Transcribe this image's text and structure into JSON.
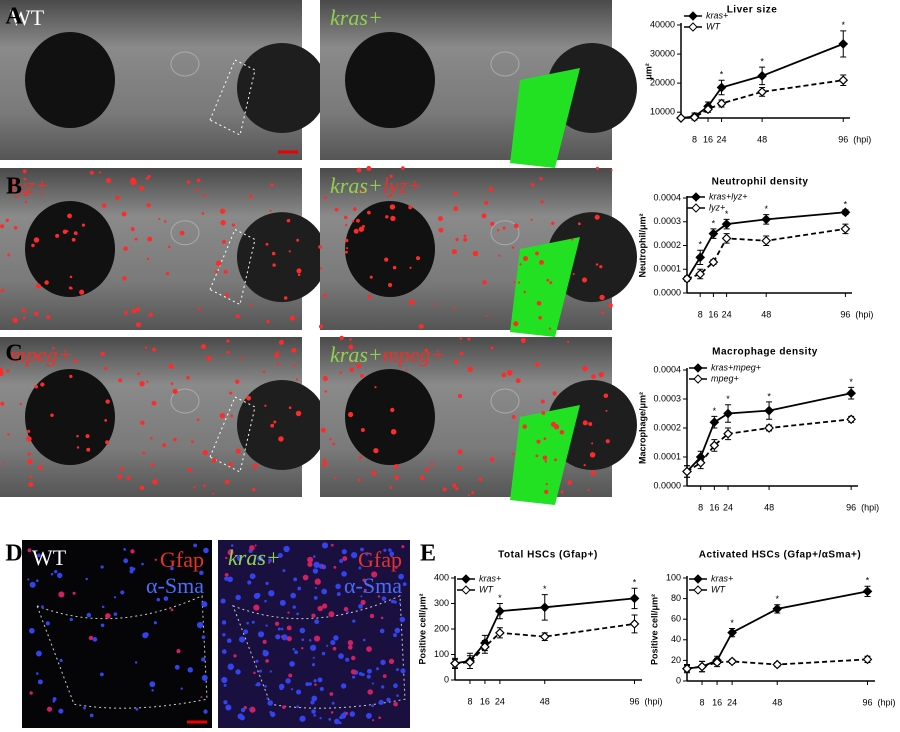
{
  "panels": [
    "A",
    "B",
    "C",
    "D",
    "E"
  ],
  "images": [
    {
      "labels": [
        {
          "text": "WT",
          "color": "#ffffff",
          "italic": false
        }
      ]
    },
    {
      "labels": [
        {
          "text": "kras+",
          "color": "#8fd14f",
          "italic": true
        }
      ]
    },
    {
      "labels": [
        {
          "text": "lyz+",
          "color": "#e8322a",
          "italic": true
        }
      ]
    },
    {
      "labels": [
        {
          "text": "kras+",
          "color": "#8fd14f",
          "italic": true
        },
        {
          "text": "lyz+",
          "color": "#e8322a",
          "italic": true
        }
      ]
    },
    {
      "labels": [
        {
          "text": "mpeg+",
          "color": "#e8322a",
          "italic": true
        }
      ]
    },
    {
      "labels": [
        {
          "text": "kras+",
          "color": "#8fd14f",
          "italic": true
        },
        {
          "text": "mpeg+",
          "color": "#e8322a",
          "italic": true
        }
      ]
    },
    {
      "labels": [
        {
          "text": "WT",
          "color": "#ffffff",
          "italic": false
        }
      ],
      "stains": [
        {
          "text": "Gfap",
          "color": "#e8322a"
        },
        {
          "text": "α-Sma",
          "color": "#4a6cff"
        }
      ]
    },
    {
      "labels": [
        {
          "text": "kras+",
          "color": "#8fd14f",
          "italic": true
        }
      ],
      "stains": [
        {
          "text": "Gfap",
          "color": "#e8322a"
        },
        {
          "text": "α-Sma",
          "color": "#4a6cff"
        }
      ]
    }
  ],
  "chart_data": [
    {
      "type": "line",
      "title": "Liver size",
      "ylabel": "μm²",
      "xlabel": "(hpi)",
      "x": [
        0,
        8,
        16,
        24,
        48,
        96
      ],
      "xlim": [
        0,
        100
      ],
      "xticks": [
        8,
        16,
        24,
        48,
        96
      ],
      "ylim": [
        8000,
        40000
      ],
      "yticks": [
        10000,
        20000,
        30000,
        40000
      ],
      "series": [
        {
          "name": "kras+",
          "color": "#000000",
          "marker": "filled",
          "dash": "solid",
          "values": [
            8000,
            8500,
            12000,
            18500,
            22500,
            33500
          ],
          "errors": [
            500,
            1200,
            1500,
            2500,
            3000,
            4500
          ]
        },
        {
          "name": "WT",
          "color": "#000000",
          "marker": "open",
          "dash": "dashed",
          "values": [
            8000,
            8200,
            11000,
            13000,
            17000,
            21000
          ],
          "errors": [
            500,
            800,
            1000,
            1200,
            1500,
            1800
          ]
        }
      ],
      "significance_marker": "*",
      "significant_x": [
        24,
        48,
        96
      ]
    },
    {
      "type": "line",
      "title": "Neutrophil density",
      "ylabel": "Neutrophil/μm²",
      "xlabel": "(hpi)",
      "x": [
        0,
        8,
        16,
        24,
        48,
        96
      ],
      "xlim": [
        0,
        100
      ],
      "xticks": [
        8,
        16,
        24,
        48,
        96
      ],
      "ylim": [
        0,
        0.0004
      ],
      "yticks": [
        {
          "value": 0,
          "label": "0.0000"
        },
        {
          "value": 0.0001,
          "label": "0.0001"
        },
        {
          "value": 0.0002,
          "label": "0.0002"
        },
        {
          "value": 0.0003,
          "label": "0.0003"
        },
        {
          "value": 0.0004,
          "label": "0.0004"
        }
      ],
      "series": [
        {
          "name": "kras+lyz+",
          "color": "#000000",
          "marker": "filled",
          "dash": "solid",
          "values": [
            6e-05,
            0.00015,
            0.00025,
            0.00029,
            0.00031,
            0.00034
          ],
          "errors": [
            1e-05,
            3e-05,
            2e-05,
            2e-05,
            2e-05,
            1e-05
          ]
        },
        {
          "name": "lyz+",
          "color": "#000000",
          "marker": "open",
          "dash": "dashed",
          "values": [
            6e-05,
            8e-05,
            0.00013,
            0.00023,
            0.00022,
            0.00027
          ],
          "errors": [
            1e-05,
            2e-05,
            1e-05,
            2e-05,
            2e-05,
            2e-05
          ]
        }
      ],
      "significance_marker": "*",
      "significant_x": [
        8,
        16,
        24,
        48,
        96
      ]
    },
    {
      "type": "line",
      "title": "Macrophage density",
      "ylabel": "Macrophage/μm²",
      "xlabel": "(hpi)",
      "x": [
        0,
        8,
        16,
        24,
        48,
        96
      ],
      "xlim": [
        0,
        100
      ],
      "xticks": [
        8,
        16,
        24,
        48,
        96
      ],
      "ylim": [
        0,
        0.0004
      ],
      "yticks": [
        {
          "value": 0,
          "label": "0.0000"
        },
        {
          "value": 0.0001,
          "label": "0.0001"
        },
        {
          "value": 0.0002,
          "label": "0.0002"
        },
        {
          "value": 0.0003,
          "label": "0.0003"
        },
        {
          "value": 0.0004,
          "label": "0.0004"
        }
      ],
      "series": [
        {
          "name": "kras+mpeg+",
          "color": "#000000",
          "marker": "filled",
          "dash": "solid",
          "values": [
            5e-05,
            0.0001,
            0.00022,
            0.00025,
            0.00026,
            0.00032
          ],
          "errors": [
            2e-05,
            2e-05,
            2e-05,
            3e-05,
            3e-05,
            2e-05
          ]
        },
        {
          "name": "mpeg+",
          "color": "#000000",
          "marker": "open",
          "dash": "dashed",
          "values": [
            5e-05,
            8e-05,
            0.00014,
            0.00018,
            0.0002,
            0.00023
          ],
          "errors": [
            2e-05,
            2e-05,
            2e-05,
            2e-05,
            1e-05,
            1e-05
          ]
        }
      ],
      "significance_marker": "*",
      "significant_x": [
        16,
        24,
        48,
        96
      ]
    },
    {
      "type": "line",
      "title": "Total HSCs (Gfap+)",
      "ylabel": "Positive cell/μm²",
      "xlabel": "(hpi)",
      "x": [
        0,
        8,
        16,
        24,
        48,
        96
      ],
      "xlim": [
        0,
        100
      ],
      "xticks": [
        8,
        16,
        24,
        48,
        96
      ],
      "ylim": [
        0,
        400
      ],
      "yticks": [
        0,
        100,
        200,
        300,
        400
      ],
      "series": [
        {
          "name": "kras+",
          "color": "#000000",
          "marker": "filled",
          "dash": "solid",
          "values": [
            65,
            75,
            145,
            270,
            285,
            320
          ],
          "errors": [
            20,
            30,
            30,
            30,
            50,
            40
          ]
        },
        {
          "name": "WT",
          "color": "#000000",
          "marker": "open",
          "dash": "dashed",
          "values": [
            65,
            70,
            130,
            185,
            170,
            220
          ],
          "errors": [
            15,
            25,
            25,
            20,
            15,
            35
          ]
        }
      ],
      "significance_marker": "*",
      "significant_x": [
        24,
        48,
        96
      ]
    },
    {
      "type": "line",
      "title": "Activated HSCs (Gfap+/αSma+)",
      "ylabel": "Positive cell/μm²",
      "xlabel": "(hpi)",
      "x": [
        0,
        8,
        16,
        24,
        48,
        96
      ],
      "xlim": [
        0,
        100
      ],
      "xticks": [
        8,
        16,
        24,
        48,
        96
      ],
      "ylim": [
        0,
        100
      ],
      "yticks": [
        0,
        20,
        40,
        60,
        80,
        100
      ],
      "series": [
        {
          "name": "kras+",
          "color": "#000000",
          "marker": "filled",
          "dash": "solid",
          "values": [
            12,
            14,
            20,
            47,
            70,
            87
          ],
          "errors": [
            4,
            5,
            4,
            4,
            4,
            5
          ]
        },
        {
          "name": "WT",
          "color": "#000000",
          "marker": "open",
          "dash": "dashed",
          "values": [
            12,
            14,
            18,
            19,
            16,
            21
          ],
          "errors": [
            3,
            5,
            4,
            2,
            2,
            3
          ]
        }
      ],
      "significance_marker": "*",
      "significant_x": [
        24,
        48,
        96
      ]
    }
  ]
}
